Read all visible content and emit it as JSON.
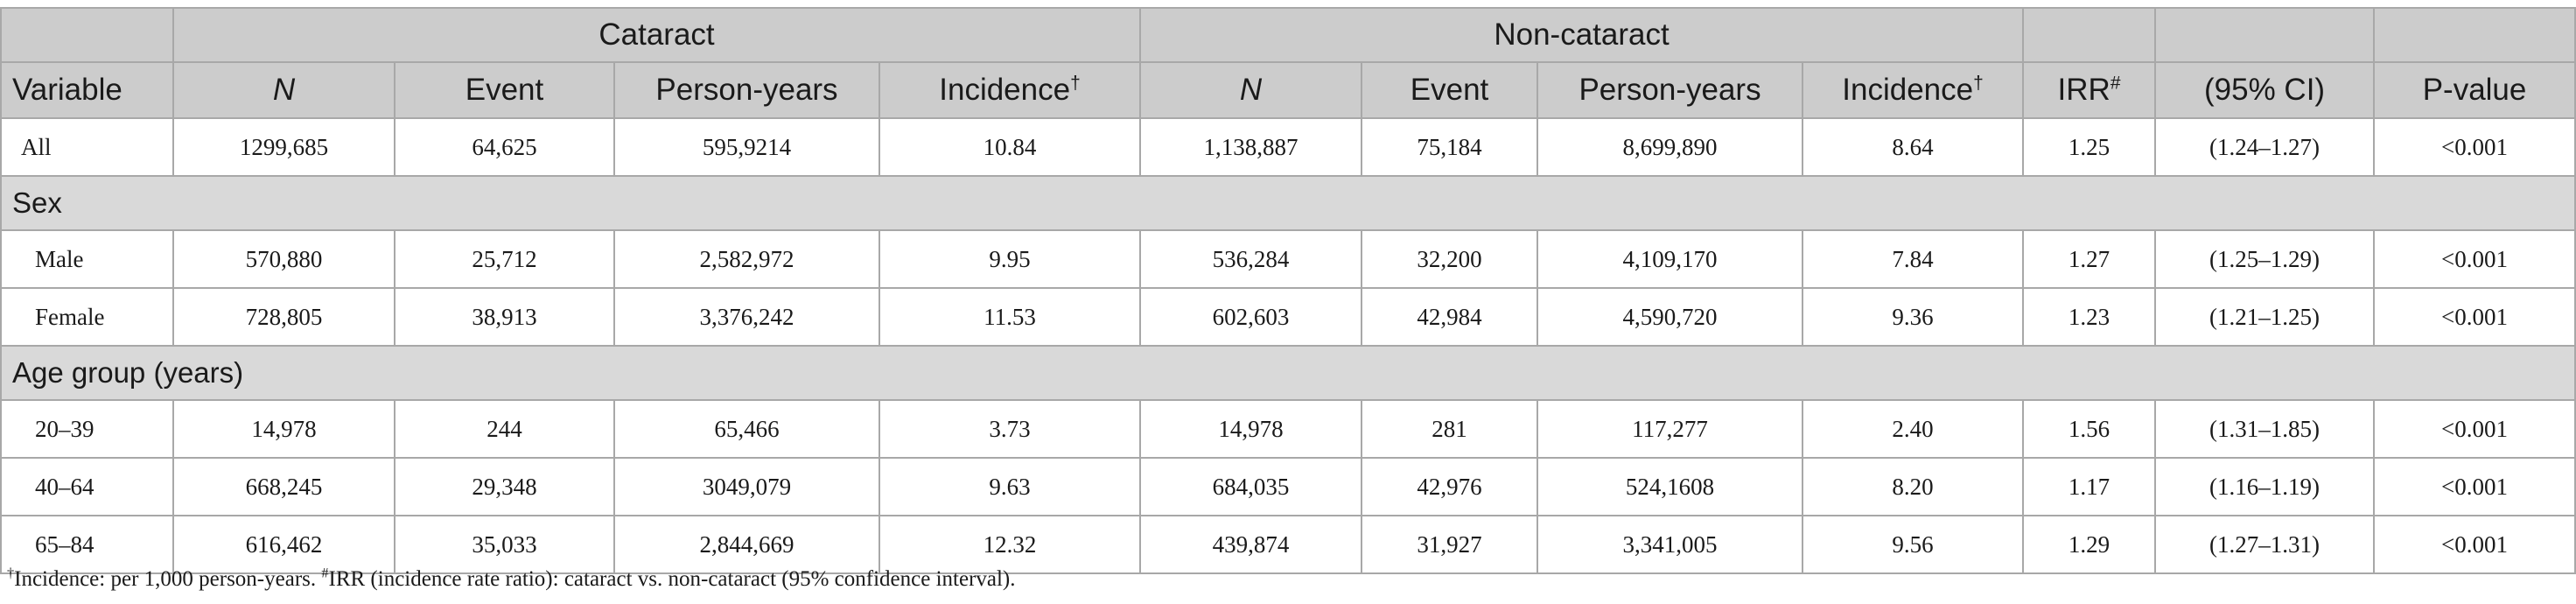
{
  "header": {
    "group_cataract": "Cataract",
    "group_noncataract": "Non-cataract",
    "columns": {
      "variable": "Variable",
      "n": "N",
      "event": "Event",
      "person_years": "Person-years",
      "incidence": "Incidence",
      "incidence_mark": "†",
      "irr": "IRR",
      "irr_mark": "#",
      "ci": "(95% CI)",
      "pvalue": "P-value"
    }
  },
  "rows": {
    "all": {
      "label": "All",
      "c_n": "1299,685",
      "c_event": "64,625",
      "c_py": "595,9214",
      "c_inc": "10.84",
      "nc_n": "1,138,887",
      "nc_event": "75,184",
      "nc_py": "8,699,890",
      "nc_inc": "8.64",
      "irr": "1.25",
      "ci": "(1.24–1.27)",
      "p": "<0.001"
    },
    "sex_section": "Sex",
    "male": {
      "label": "Male",
      "c_n": "570,880",
      "c_event": "25,712",
      "c_py": "2,582,972",
      "c_inc": "9.95",
      "nc_n": "536,284",
      "nc_event": "32,200",
      "nc_py": "4,109,170",
      "nc_inc": "7.84",
      "irr": "1.27",
      "ci": "(1.25–1.29)",
      "p": "<0.001"
    },
    "female": {
      "label": "Female",
      "c_n": "728,805",
      "c_event": "38,913",
      "c_py": "3,376,242",
      "c_inc": "11.53",
      "nc_n": "602,603",
      "nc_event": "42,984",
      "nc_py": "4,590,720",
      "nc_inc": "9.36",
      "irr": "1.23",
      "ci": "(1.21–1.25)",
      "p": "<0.001"
    },
    "age_section": "Age group (years)",
    "age_20_39": {
      "label": "20–39",
      "c_n": "14,978",
      "c_event": "244",
      "c_py": "65,466",
      "c_inc": "3.73",
      "nc_n": "14,978",
      "nc_event": "281",
      "nc_py": "117,277",
      "nc_inc": "2.40",
      "irr": "1.56",
      "ci": "(1.31–1.85)",
      "p": "<0.001"
    },
    "age_40_64": {
      "label": "40–64",
      "c_n": "668,245",
      "c_event": "29,348",
      "c_py": "3049,079",
      "c_inc": "9.63",
      "nc_n": "684,035",
      "nc_event": "42,976",
      "nc_py": "524,1608",
      "nc_inc": "8.20",
      "irr": "1.17",
      "ci": "(1.16–1.19)",
      "p": "<0.001"
    },
    "age_65_84": {
      "label": "65–84",
      "c_n": "616,462",
      "c_event": "35,033",
      "c_py": "2,844,669",
      "c_inc": "12.32",
      "nc_n": "439,874",
      "nc_event": "31,927",
      "nc_py": "3,341,005",
      "nc_inc": "9.56",
      "irr": "1.29",
      "ci": "(1.27–1.31)",
      "p": "<0.001"
    }
  },
  "footnote": {
    "mark1": "†",
    "text1": "Incidence: per 1,000 person-years. ",
    "mark2": "#",
    "text2": "IRR (incidence rate ratio): cataract vs. non-cataract (95% confidence interval)."
  }
}
